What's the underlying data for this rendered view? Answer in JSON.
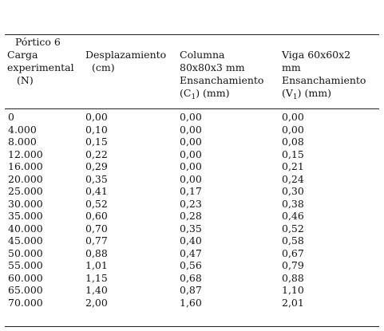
{
  "table": {
    "caption": "Pórtico 6",
    "headers": {
      "col0": [
        "Carga",
        "experimental",
        "(N)"
      ],
      "col1": [
        "Desplazamiento",
        "(cm)"
      ],
      "col2": [
        "Columna",
        "80x80x3 mm",
        "Ensanchamiento",
        "(C",
        "1",
        ") (mm)"
      ],
      "col3": [
        "Viga 60x60x2",
        "mm",
        "Ensanchamiento",
        "(V",
        "1",
        ") (mm)"
      ]
    },
    "rows": [
      [
        "0",
        "0,00",
        "0,00",
        "0,00"
      ],
      [
        "4.000",
        "0,10",
        "0,00",
        "0,00"
      ],
      [
        "8.000",
        "0,15",
        "0,00",
        "0,08"
      ],
      [
        "12.000",
        "0,22",
        "0,00",
        "0,15"
      ],
      [
        "16.000",
        "0,29",
        "0,00",
        "0,21"
      ],
      [
        "20.000",
        "0,35",
        "0,00",
        "0,24"
      ],
      [
        "25.000",
        "0,41",
        "0,17",
        "0,30"
      ],
      [
        "30.000",
        "0,52",
        "0,23",
        "0,38"
      ],
      [
        "35.000",
        "0,60",
        "0,28",
        "0,46"
      ],
      [
        "40.000",
        "0,70",
        "0,35",
        "0,52"
      ],
      [
        "45.000",
        "0,77",
        "0,40",
        "0,58"
      ],
      [
        "50.000",
        "0,88",
        "0,47",
        "0,67"
      ],
      [
        "55.000",
        "1,01",
        "0,56",
        "0,79"
      ],
      [
        "60.000",
        "1,15",
        "0,68",
        "0,88"
      ],
      [
        "65.000",
        "1,40",
        "0,87",
        "1,10"
      ],
      [
        "70.000",
        "2,00",
        "1,60",
        "2,01"
      ]
    ]
  }
}
